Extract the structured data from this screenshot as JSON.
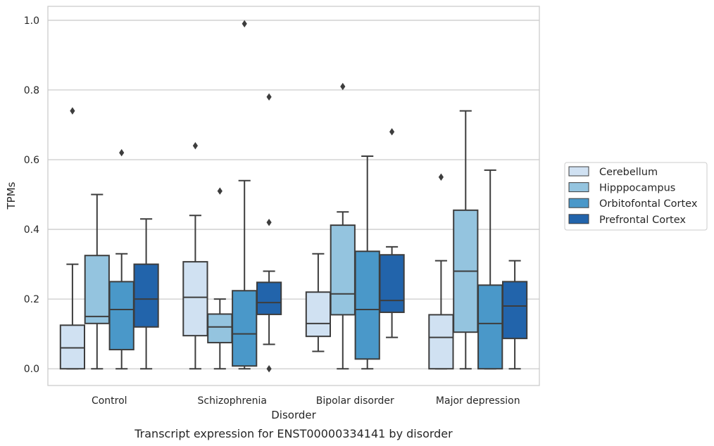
{
  "chart_data": {
    "type": "box",
    "caption": "Transcript expression for ENST00000334141 by disorder",
    "xlabel": "Disorder",
    "ylabel": "TPMs",
    "ylim": [
      -0.048,
      1.04
    ],
    "yticks": [
      0.0,
      0.2,
      0.4,
      0.6,
      0.8,
      1.0
    ],
    "ytick_labels": [
      "0.0",
      "0.2",
      "0.4",
      "0.6",
      "0.8",
      "1.0"
    ],
    "grid": "horizontal",
    "legend_position": "right",
    "categories": [
      "Control",
      "Schizophrenia",
      "Bipolar disorder",
      "Major depression"
    ],
    "series": [
      {
        "name": "Cerebellum",
        "color": "#d0e1f2",
        "boxes": [
          {
            "whisker_low": 0.0,
            "q1": 0.0,
            "median": 0.06,
            "q3": 0.125,
            "whisker_high": 0.3,
            "outliers": [
              0.74
            ]
          },
          {
            "whisker_low": 0.0,
            "q1": 0.095,
            "median": 0.205,
            "q3": 0.307,
            "whisker_high": 0.44,
            "outliers": [
              0.64
            ]
          },
          {
            "whisker_low": 0.05,
            "q1": 0.093,
            "median": 0.13,
            "q3": 0.22,
            "whisker_high": 0.33,
            "outliers": []
          },
          {
            "whisker_low": 0.0,
            "q1": 0.0,
            "median": 0.09,
            "q3": 0.155,
            "whisker_high": 0.31,
            "outliers": [
              0.55
            ]
          }
        ]
      },
      {
        "name": "Hipppocampus",
        "color": "#94c4df",
        "boxes": [
          {
            "whisker_low": 0.0,
            "q1": 0.13,
            "median": 0.15,
            "q3": 0.325,
            "whisker_high": 0.5,
            "outliers": []
          },
          {
            "whisker_low": 0.0,
            "q1": 0.075,
            "median": 0.12,
            "q3": 0.157,
            "whisker_high": 0.2,
            "outliers": [
              0.51
            ]
          },
          {
            "whisker_low": 0.0,
            "q1": 0.155,
            "median": 0.215,
            "q3": 0.412,
            "whisker_high": 0.45,
            "outliers": [
              0.81
            ]
          },
          {
            "whisker_low": 0.0,
            "q1": 0.105,
            "median": 0.28,
            "q3": 0.455,
            "whisker_high": 0.74,
            "outliers": []
          }
        ]
      },
      {
        "name": "Orbitofontal Cortex",
        "color": "#4a98c9",
        "boxes": [
          {
            "whisker_low": 0.0,
            "q1": 0.055,
            "median": 0.17,
            "q3": 0.25,
            "whisker_high": 0.33,
            "outliers": [
              0.62
            ]
          },
          {
            "whisker_low": 0.0,
            "q1": 0.008,
            "median": 0.1,
            "q3": 0.224,
            "whisker_high": 0.54,
            "outliers": [
              0.99
            ]
          },
          {
            "whisker_low": 0.0,
            "q1": 0.028,
            "median": 0.17,
            "q3": 0.337,
            "whisker_high": 0.61,
            "outliers": []
          },
          {
            "whisker_low": 0.0,
            "q1": 0.0,
            "median": 0.13,
            "q3": 0.24,
            "whisker_high": 0.57,
            "outliers": []
          }
        ]
      },
      {
        "name": "Prefrontal Cortex",
        "color": "#2264ab",
        "boxes": [
          {
            "whisker_low": 0.0,
            "q1": 0.12,
            "median": 0.2,
            "q3": 0.3,
            "whisker_high": 0.43,
            "outliers": []
          },
          {
            "whisker_low": 0.07,
            "q1": 0.156,
            "median": 0.19,
            "q3": 0.248,
            "whisker_high": 0.28,
            "outliers": [
              0.78,
              0.42,
              0.0
            ]
          },
          {
            "whisker_low": 0.09,
            "q1": 0.162,
            "median": 0.196,
            "q3": 0.327,
            "whisker_high": 0.35,
            "outliers": [
              0.68
            ]
          },
          {
            "whisker_low": 0.0,
            "q1": 0.087,
            "median": 0.18,
            "q3": 0.25,
            "whisker_high": 0.31,
            "outliers": []
          }
        ]
      }
    ]
  }
}
